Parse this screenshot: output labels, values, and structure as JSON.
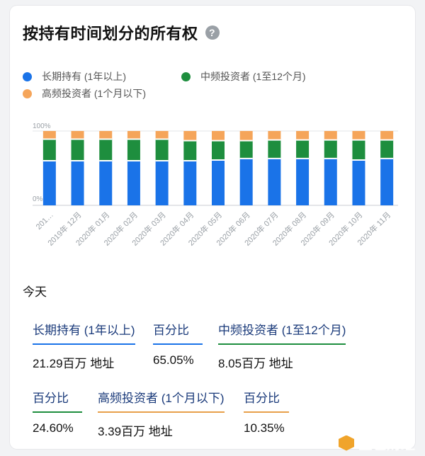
{
  "title": "按持有时间划分的所有权",
  "help_icon": "question-circle-icon",
  "legend": [
    {
      "label": "长期持有 (1年以上)",
      "color": "#1a73e8"
    },
    {
      "label": "中频投资者 (1至12个月)",
      "color": "#1e8e3e"
    },
    {
      "label": "高频投资者 (1个月以下)",
      "color": "#f5a55a"
    }
  ],
  "chart_data": {
    "type": "bar",
    "stacked": true,
    "categories": [
      "201…",
      "2019年 12月",
      "2020年 01月",
      "2020年 02月",
      "2020年 03月",
      "2020年 04月",
      "2020年 05月",
      "2020年 06月",
      "2020年 07月",
      "2020年 08月",
      "2020年 09月",
      "2020年 10月",
      "2020年 11月"
    ],
    "ylim": [
      0,
      100
    ],
    "ytick_labels": [
      "0%",
      "100%"
    ],
    "grid": true,
    "series": [
      {
        "name": "长期持有 (1年以上)",
        "color": "#1a73e8",
        "values": [
          60,
          60,
          60,
          60,
          60,
          60,
          61,
          63,
          63,
          63,
          63,
          61,
          63
        ]
      },
      {
        "name": "中频投资者 (1至12个月)",
        "color": "#1e8e3e",
        "values": [
          29,
          29,
          29,
          29,
          29,
          27,
          26,
          24,
          25,
          25,
          25,
          27,
          25
        ]
      },
      {
        "name": "高频投资者 (1个月以下)",
        "color": "#f5a55a",
        "values": [
          11,
          11,
          11,
          11,
          11,
          13,
          13,
          13,
          12,
          12,
          12,
          12,
          12
        ]
      }
    ]
  },
  "today_label": "今天",
  "stats": {
    "long_label": "长期持有 (1年以上)",
    "long_value": "21.29百万 地址",
    "long_pct_label": "百分比",
    "long_pct_value": "65.05%",
    "mid_label": "中频投资者 (1至12个月)",
    "mid_value": "8.05百万 地址",
    "mid_pct_label": "百分比",
    "mid_pct_value": "24.60%",
    "short_label": "高频投资者 (1个月以下)",
    "short_value": "3.39百万 地址",
    "short_pct_label": "百分比",
    "short_pct_value": "10.35%"
  },
  "watermark": "金色财经"
}
